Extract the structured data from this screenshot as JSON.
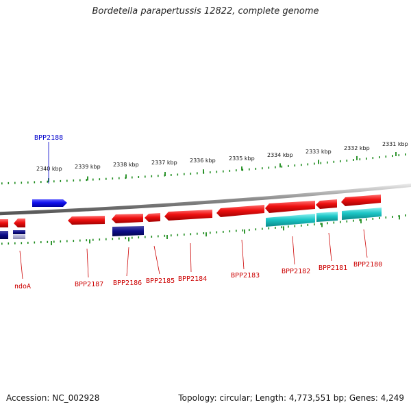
{
  "title": "Bordetella parapertussis 12822, complete genome",
  "footer": {
    "accession": "Accession: NC_002928",
    "summary": "Topology: circular; Length: 4,773,551 bp; Genes: 4,249"
  },
  "colors": {
    "forward_gene": "#1010ee",
    "reverse_gene": "#ee1010",
    "cds_band": "#1cc6c6",
    "dark_gene": "#0c0c88",
    "backbone": "#8a8a8a",
    "tick": "#1a8a1a",
    "label_forward": "#0000cc",
    "label_reverse": "#cc0000"
  },
  "kbp_labels": [
    "2340 kbp",
    "2339 kbp",
    "2338 kbp",
    "2337 kbp",
    "2336 kbp",
    "2335 kbp",
    "2334 kbp",
    "2333 kbp",
    "2332 kbp",
    "2331 kbp"
  ],
  "genes": [
    {
      "name": "BPP2188",
      "strand": "forward"
    },
    {
      "name": "ndoA",
      "strand": "reverse"
    },
    {
      "name": "BPP2187",
      "strand": "reverse"
    },
    {
      "name": "BPP2186",
      "strand": "reverse"
    },
    {
      "name": "BPP2185",
      "strand": "reverse"
    },
    {
      "name": "BPP2184",
      "strand": "reverse"
    },
    {
      "name": "BPP2183",
      "strand": "reverse"
    },
    {
      "name": "BPP2182",
      "strand": "reverse"
    },
    {
      "name": "BPP2181",
      "strand": "reverse"
    },
    {
      "name": "BPP2180",
      "strand": "reverse"
    }
  ]
}
